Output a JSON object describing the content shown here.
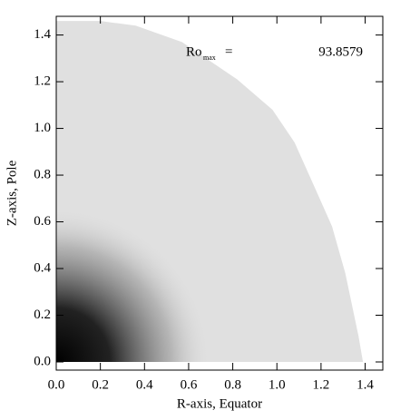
{
  "chart_data": {
    "type": "area",
    "x_label": "R-axis, Equator",
    "y_label": "Z-axis, Pole",
    "annotation": {
      "label": "Ro",
      "subscript": "max",
      "sign": "=",
      "value": 93.8579
    },
    "series": [
      {
        "color": "#e0e0e0",
        "x": [
          0,
          0.2,
          0.36,
          0.57,
          0.82,
          0.98,
          1.08,
          1.17,
          1.25,
          1.31,
          1.37,
          1.39,
          0
        ],
        "y": [
          1.46,
          1.46,
          1.44,
          1.37,
          1.21,
          1.08,
          0.94,
          0.75,
          0.58,
          0.38,
          0.11,
          0,
          0
        ]
      }
    ],
    "xlim": [
      0,
      1.48
    ],
    "ylim": [
      -0.035,
      1.48
    ],
    "xticks": [
      {
        "value": 0,
        "label": "0.0"
      },
      0.2,
      0.4,
      0.6,
      0.8,
      {
        "value": 1,
        "label": "1.0"
      },
      1.2,
      1.4
    ],
    "yticks": [
      {
        "value": 0,
        "label": "0.0"
      },
      0.2,
      0.4,
      0.6,
      0.8,
      {
        "value": 1,
        "label": "1.0"
      },
      1.2,
      1.4
    ]
  }
}
